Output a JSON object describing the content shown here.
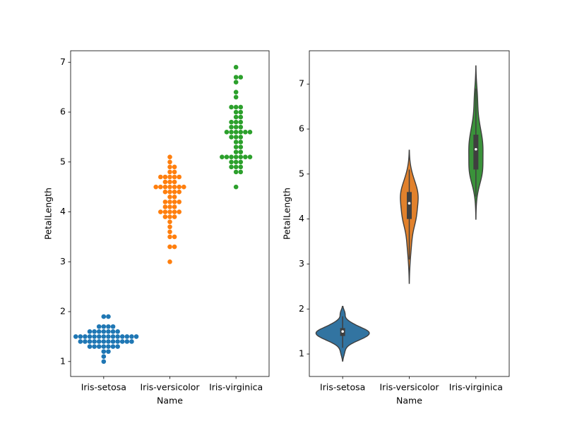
{
  "chart_data": [
    {
      "type": "swarm",
      "x_label": "Name",
      "y_label": "PetalLength",
      "categories": [
        "Iris-setosa",
        "Iris-versicolor",
        "Iris-virginica"
      ],
      "colors": [
        "#1f77b4",
        "#ff7f0e",
        "#2ca02c"
      ],
      "ylim": [
        0.7,
        7.23
      ],
      "yticks": [
        1,
        2,
        3,
        4,
        5,
        6,
        7
      ],
      "values": [
        [
          1.4,
          1.4,
          1.3,
          1.5,
          1.4,
          1.7,
          1.4,
          1.5,
          1.4,
          1.5,
          1.5,
          1.6,
          1.4,
          1.1,
          1.2,
          1.5,
          1.3,
          1.4,
          1.7,
          1.5,
          1.7,
          1.5,
          1.0,
          1.7,
          1.9,
          1.6,
          1.6,
          1.5,
          1.4,
          1.6,
          1.6,
          1.5,
          1.5,
          1.4,
          1.5,
          1.2,
          1.3,
          1.5,
          1.3,
          1.5,
          1.3,
          1.3,
          1.3,
          1.6,
          1.9,
          1.4,
          1.6,
          1.4,
          1.5,
          1.4
        ],
        [
          4.7,
          4.5,
          4.9,
          4.0,
          4.6,
          4.5,
          4.7,
          3.3,
          4.6,
          3.9,
          3.5,
          4.2,
          4.0,
          4.7,
          3.6,
          4.4,
          4.5,
          4.1,
          4.5,
          3.9,
          4.8,
          4.0,
          4.9,
          4.7,
          4.3,
          4.4,
          4.8,
          5.0,
          4.5,
          3.5,
          3.8,
          3.7,
          3.9,
          5.1,
          4.5,
          4.5,
          4.7,
          4.4,
          4.1,
          4.0,
          4.4,
          4.6,
          4.0,
          3.3,
          4.2,
          4.2,
          4.2,
          4.3,
          3.0,
          4.1
        ],
        [
          6.0,
          5.1,
          5.9,
          5.6,
          5.8,
          6.6,
          4.5,
          6.3,
          5.8,
          6.1,
          5.1,
          5.3,
          5.5,
          5.0,
          5.1,
          5.3,
          5.5,
          6.7,
          6.9,
          5.0,
          5.7,
          4.9,
          6.7,
          4.9,
          5.7,
          6.0,
          4.8,
          4.9,
          5.6,
          5.8,
          6.1,
          6.4,
          5.6,
          5.1,
          5.6,
          6.1,
          5.6,
          5.5,
          4.8,
          5.4,
          5.6,
          5.1,
          5.1,
          5.9,
          5.7,
          5.2,
          5.0,
          5.2,
          5.4,
          5.1
        ]
      ]
    },
    {
      "type": "violin",
      "x_label": "Name",
      "y_label": "PetalLength",
      "categories": [
        "Iris-setosa",
        "Iris-versicolor",
        "Iris-virginica"
      ],
      "colors": [
        "#3274a1",
        "#e1812c",
        "#3a923a"
      ],
      "ylim": [
        0.5,
        7.74
      ],
      "yticks": [
        1,
        2,
        3,
        4,
        5,
        6,
        7
      ],
      "values": [
        [
          1.4,
          1.4,
          1.3,
          1.5,
          1.4,
          1.7,
          1.4,
          1.5,
          1.4,
          1.5,
          1.5,
          1.6,
          1.4,
          1.1,
          1.2,
          1.5,
          1.3,
          1.4,
          1.7,
          1.5,
          1.7,
          1.5,
          1.0,
          1.7,
          1.9,
          1.6,
          1.6,
          1.5,
          1.4,
          1.6,
          1.6,
          1.5,
          1.5,
          1.4,
          1.5,
          1.2,
          1.3,
          1.5,
          1.3,
          1.5,
          1.3,
          1.3,
          1.3,
          1.6,
          1.9,
          1.4,
          1.6,
          1.4,
          1.5,
          1.4
        ],
        [
          4.7,
          4.5,
          4.9,
          4.0,
          4.6,
          4.5,
          4.7,
          3.3,
          4.6,
          3.9,
          3.5,
          4.2,
          4.0,
          4.7,
          3.6,
          4.4,
          4.5,
          4.1,
          4.5,
          3.9,
          4.8,
          4.0,
          4.9,
          4.7,
          4.3,
          4.4,
          4.8,
          5.0,
          4.5,
          3.5,
          3.8,
          3.7,
          3.9,
          5.1,
          4.5,
          4.5,
          4.7,
          4.4,
          4.1,
          4.0,
          4.4,
          4.6,
          4.0,
          3.3,
          4.2,
          4.2,
          4.2,
          4.3,
          3.0,
          4.1
        ],
        [
          6.0,
          5.1,
          5.9,
          5.6,
          5.8,
          6.6,
          4.5,
          6.3,
          5.8,
          6.1,
          5.1,
          5.3,
          5.5,
          5.0,
          5.1,
          5.3,
          5.5,
          6.7,
          6.9,
          5.0,
          5.7,
          4.9,
          6.7,
          4.9,
          5.7,
          6.0,
          4.8,
          4.9,
          5.6,
          5.8,
          6.1,
          6.4,
          5.6,
          5.1,
          5.6,
          6.1,
          5.6,
          5.5,
          4.8,
          5.4,
          5.6,
          5.1,
          5.1,
          5.9,
          5.7,
          5.2,
          5.0,
          5.2,
          5.4,
          5.1
        ]
      ]
    }
  ]
}
